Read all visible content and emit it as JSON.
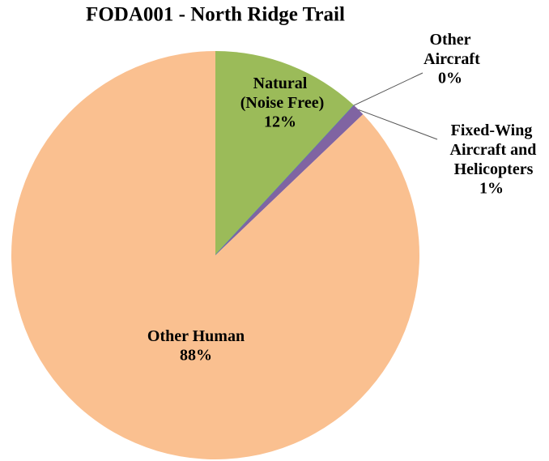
{
  "chart_data": {
    "type": "pie",
    "title": "FODA001 - North Ridge Trail",
    "categories": [
      "Natural (Noise Free)",
      "Other Aircraft",
      "Fixed-Wing Aircraft and Helicopters",
      "Other Human"
    ],
    "values": [
      12,
      0,
      1,
      88
    ],
    "value_labels": [
      "12%",
      "0%",
      "1%",
      "88%"
    ],
    "colors": [
      "#9bbb59",
      "#4f81bd",
      "#8064a2",
      "#fac090"
    ]
  }
}
